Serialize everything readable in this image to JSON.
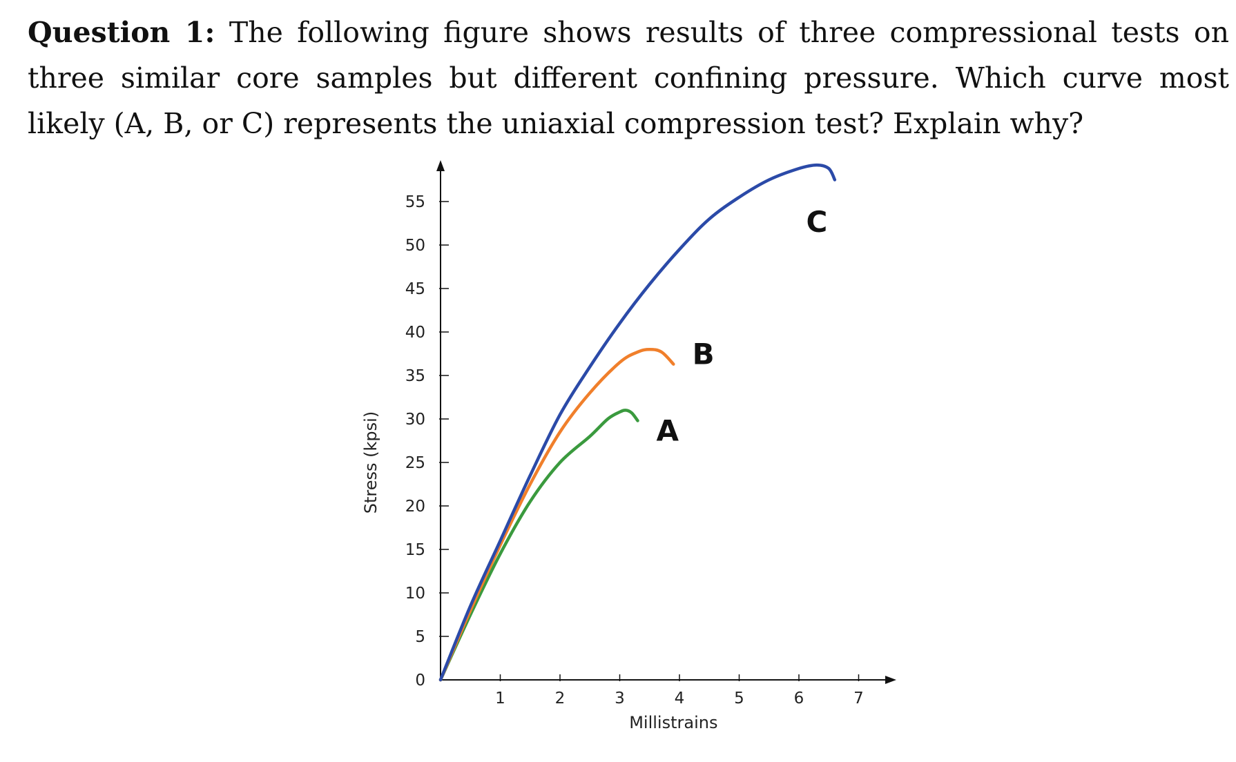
{
  "question": {
    "label": "Question 1:",
    "text": "The following figure shows results of three compressional tests on three similar core samples but different confining pressure. Which curve most likely (A, B, or C) represents the uniaxial compression test? Explain why?"
  },
  "chart_data": {
    "type": "line",
    "title": "",
    "xlabel": "Millistrains",
    "ylabel": "Stress (kpsi)",
    "xlim": [
      0,
      7.5
    ],
    "ylim": [
      0,
      57
    ],
    "xticks": [
      1,
      2,
      3,
      4,
      5,
      6,
      7
    ],
    "yticks": [
      0,
      5,
      10,
      15,
      20,
      25,
      30,
      35,
      40,
      45,
      50,
      55
    ],
    "grid": false,
    "legend": "none",
    "series": [
      {
        "name": "A",
        "color": "#3a9a3e",
        "x": [
          0,
          0.5,
          1.0,
          1.5,
          2.0,
          2.5,
          2.8,
          3.0,
          3.1,
          3.2,
          3.3
        ],
        "y": [
          0,
          7.5,
          14.5,
          20.5,
          25.0,
          28.0,
          30.0,
          30.8,
          31.0,
          30.7,
          29.8
        ]
      },
      {
        "name": "B",
        "color": "#f07f2b",
        "x": [
          0,
          0.5,
          1.0,
          1.5,
          2.0,
          2.5,
          3.0,
          3.3,
          3.5,
          3.7,
          3.9
        ],
        "y": [
          0,
          8.0,
          15.5,
          22.5,
          28.5,
          33.0,
          36.5,
          37.7,
          38.0,
          37.7,
          36.3
        ]
      },
      {
        "name": "C",
        "color": "#2b4aa8",
        "x": [
          0,
          0.5,
          1.0,
          1.5,
          2.0,
          2.5,
          3.0,
          3.5,
          4.0,
          4.5,
          5.0,
          5.5,
          6.0,
          6.3,
          6.5,
          6.6
        ],
        "y": [
          0,
          8.5,
          16.0,
          23.5,
          30.5,
          36.0,
          41.0,
          45.5,
          49.5,
          53.0,
          55.5,
          57.5,
          58.8,
          59.2,
          58.8,
          57.5
        ]
      }
    ],
    "labels": [
      {
        "text": "A",
        "series": "A",
        "x": 3.8,
        "y": 27.5
      },
      {
        "text": "B",
        "series": "B",
        "x": 4.4,
        "y": 36.3
      },
      {
        "text": "C",
        "series": "C",
        "x": 6.3,
        "y": 51.5
      }
    ]
  }
}
